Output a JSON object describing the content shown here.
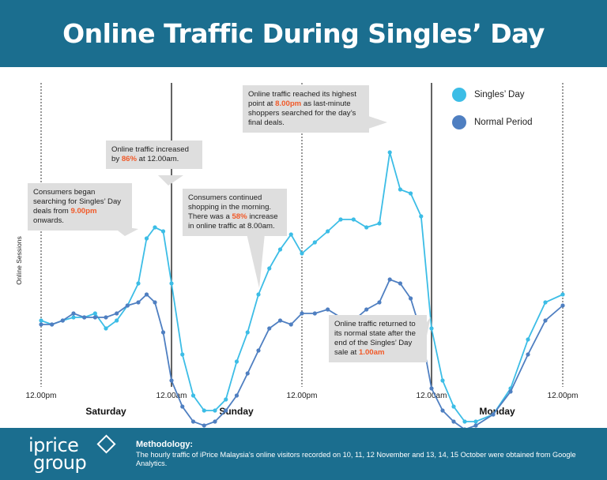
{
  "title": "Online Traffic During Singles’ Day",
  "colors": {
    "header": "#1b6e8f",
    "singles": "#3cbde6",
    "normal": "#4f7fc1",
    "highlight": "#f15a29",
    "callout": "#dedede"
  },
  "chart_data": {
    "type": "line",
    "ylabel": "Online Sessions",
    "x_ticks": [
      "12.00pm",
      "12.00am",
      "12.00pm",
      "12.00am",
      "12.00pm"
    ],
    "day_labels": [
      "Saturday",
      "Sunday",
      "Monday"
    ],
    "hours": 72,
    "y_units": "relative",
    "series": [
      {
        "name": "Singles’ Day",
        "color": "#3cbde6",
        "values": [
          38,
          37,
          38,
          39,
          39,
          40,
          36,
          38,
          42,
          48,
          60,
          63,
          62,
          48,
          29,
          18,
          14,
          14,
          17,
          27,
          35,
          45,
          52,
          57,
          61,
          56,
          59,
          62,
          65,
          65,
          63,
          64,
          83,
          73,
          72,
          66,
          36,
          22,
          15,
          11,
          11,
          13,
          20,
          33,
          43,
          45
        ]
      },
      {
        "name": "Normal Period",
        "color": "#4f7fc1",
        "values": [
          37,
          37,
          38,
          40,
          39,
          39,
          39,
          40,
          42,
          43,
          45,
          43,
          35,
          22,
          15,
          11,
          10,
          11,
          14,
          18,
          24,
          30,
          36,
          38,
          37,
          40,
          40,
          41,
          39,
          38,
          41,
          43,
          49,
          48,
          44,
          35,
          20,
          14,
          11,
          9,
          10,
          13,
          19,
          29,
          38,
          42
        ]
      }
    ],
    "legend_position": "top-right"
  },
  "legend": {
    "singles": "Singles’ Day",
    "normal": "Normal Period"
  },
  "callouts": {
    "c1": {
      "pre": "Consumers began searching for Singles’ Day deals from ",
      "hl": "9.00pm",
      "post": " onwards."
    },
    "c2": {
      "pre": "Online traffic increased by ",
      "hl": "86%",
      "post": " at 12.00am."
    },
    "c3": {
      "pre": "Consumers continued shopping in the morning. There was a ",
      "hl": "58%",
      "post": " increase in online traffic at 8.00am."
    },
    "c4": {
      "pre": "Online traffic reached its highest point at ",
      "hl": "8.00pm",
      "post": " as last-minute shoppers searched for the day’s final deals."
    },
    "c5": {
      "pre": "Online traffic returned to its normal state after the end of the Singles’ Day sale at ",
      "hl": "1.00am",
      "post": ""
    }
  },
  "footer": {
    "logo_line1": "iprice",
    "logo_line2": "group",
    "method_title": "Methodology:",
    "method_body": "The hourly traffic of iPrice Malaysia’s online visitors recorded on 10, 11, 12 November and 13, 14, 15 October were obtained from Google Analytics."
  }
}
